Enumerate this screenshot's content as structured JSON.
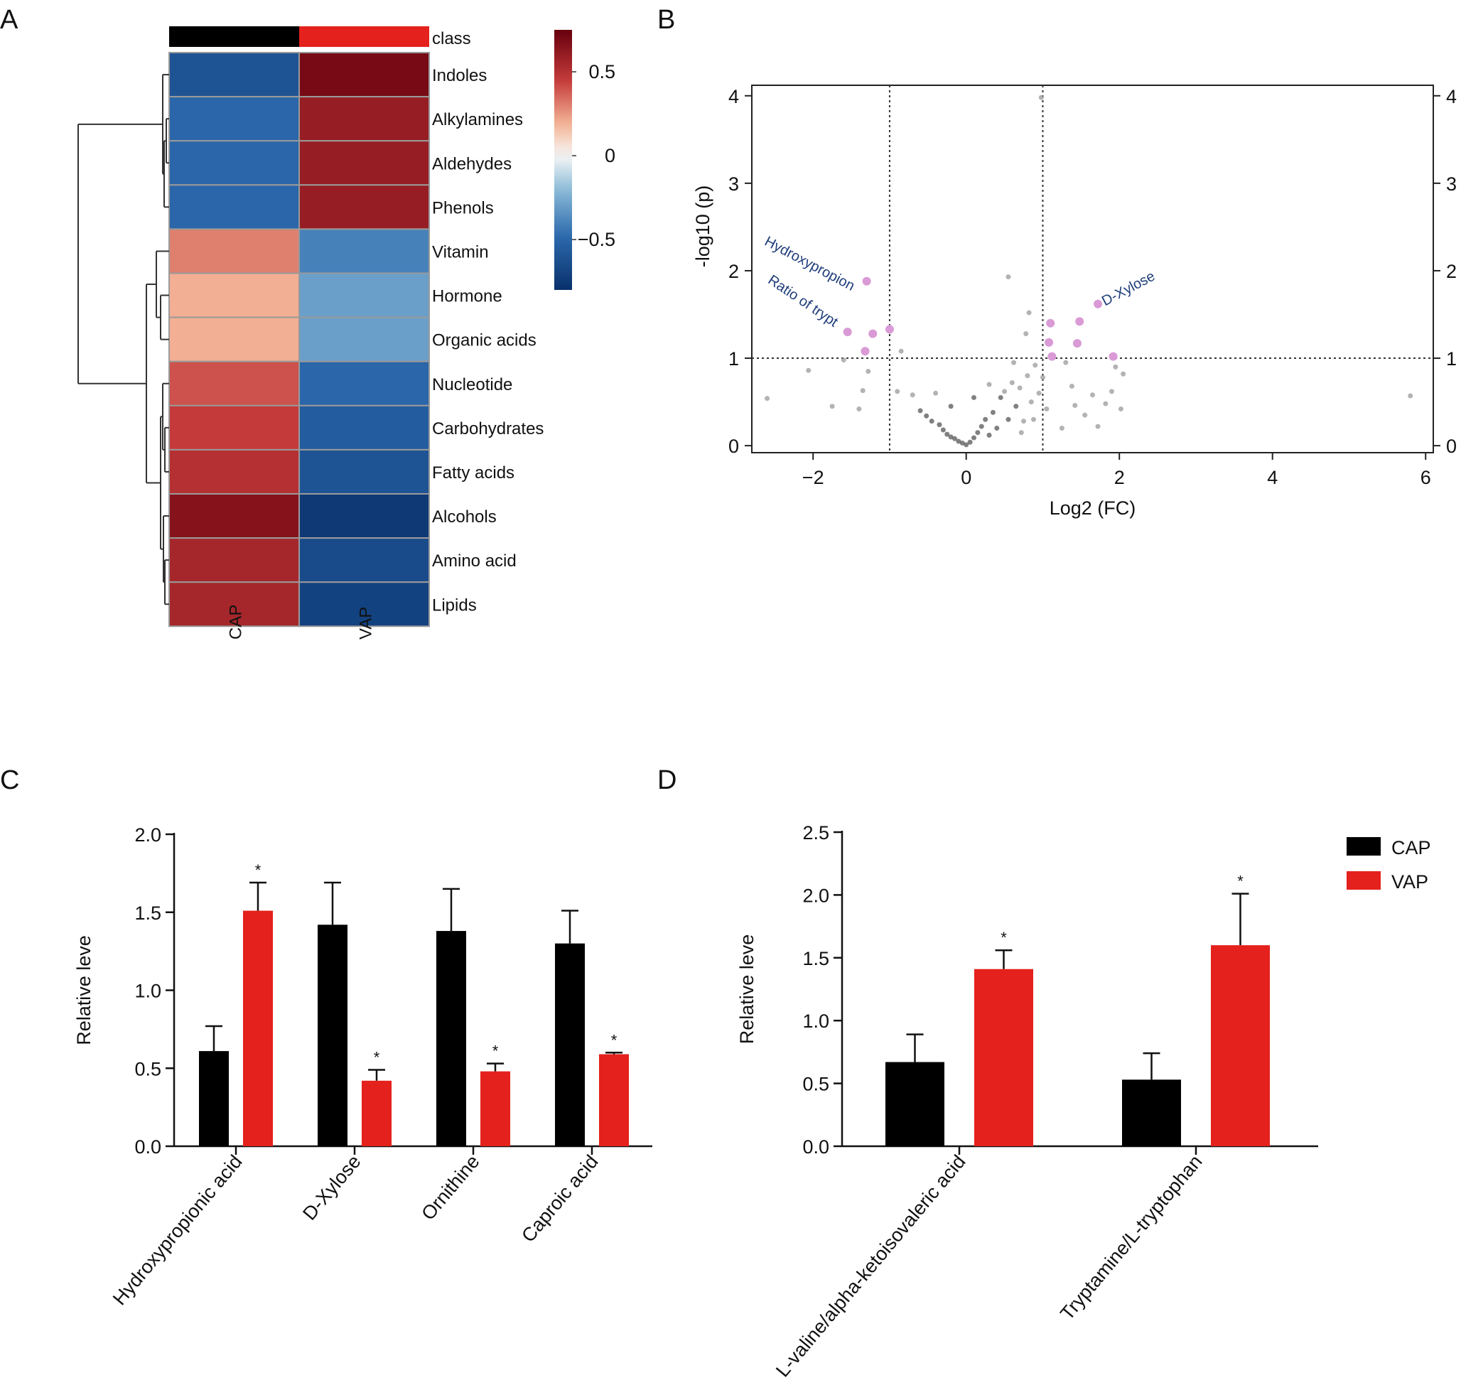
{
  "panels": {
    "a": "A",
    "b": "B",
    "c": "C",
    "d": "D"
  },
  "colors": {
    "cap": "#000000",
    "vap": "#e4211c",
    "high": "#67000d",
    "mid": "#f7f7f7",
    "low": "#08306b"
  },
  "chart_data": [
    {
      "type": "heatmap",
      "panel": "A",
      "columns": [
        "CAP",
        "VAP"
      ],
      "annotation_label": "class",
      "rows": [
        "Indoles",
        "Alkylamines",
        "Aldehydes",
        "Phenols",
        "Vitamin",
        "Hormone",
        "Organic acids",
        "Nucleotide",
        "Carbohydrates",
        "Fatty acids",
        "Alcohols",
        "Amino acid",
        "Lipids"
      ],
      "values": [
        [
          -0.6,
          0.7
        ],
        [
          -0.5,
          0.6
        ],
        [
          -0.5,
          0.6
        ],
        [
          -0.5,
          0.6
        ],
        [
          0.3,
          -0.4
        ],
        [
          0.2,
          -0.3
        ],
        [
          0.2,
          -0.3
        ],
        [
          0.4,
          -0.5
        ],
        [
          0.45,
          -0.55
        ],
        [
          0.5,
          -0.6
        ],
        [
          0.65,
          -0.75
        ],
        [
          0.55,
          -0.65
        ],
        [
          0.55,
          -0.7
        ]
      ],
      "colorbar": {
        "ticks": [
          "0.5",
          "0",
          "−0.5"
        ],
        "tick_values": [
          0.5,
          0,
          -0.5
        ],
        "range": [
          -0.8,
          0.75
        ]
      },
      "dendrogram": true
    },
    {
      "type": "scatter",
      "panel": "B",
      "xlabel": "Log2 (FC)",
      "ylabel": "-log10 (p)",
      "xlim": [
        -2.8,
        6.1
      ],
      "ylim": [
        -0.08,
        4.12
      ],
      "xticks": [
        "−2",
        "0",
        "2",
        "4",
        "6"
      ],
      "xtick_values": [
        -2,
        0,
        2,
        4,
        6
      ],
      "yticks": [
        "0",
        "1",
        "2",
        "3",
        "4"
      ],
      "ytick_values": [
        0,
        1,
        2,
        3,
        4
      ],
      "thresholds": {
        "x": [
          -1,
          1
        ],
        "y": 1
      },
      "annotations": [
        {
          "text": "Hydroxypropion",
          "x": -1.3,
          "y": 1.88
        },
        {
          "text": "Ratio of trypt",
          "x": -1.58,
          "y": 1.3
        },
        {
          "text": "D-Xylose",
          "x": 1.72,
          "y": 1.62
        }
      ],
      "significant_points": [
        [
          -1.3,
          1.88
        ],
        [
          -1.55,
          1.3
        ],
        [
          -1.22,
          1.28
        ],
        [
          -1.0,
          1.33
        ],
        [
          -1.32,
          1.08
        ],
        [
          1.1,
          1.4
        ],
        [
          1.08,
          1.18
        ],
        [
          1.12,
          1.02
        ],
        [
          1.45,
          1.17
        ],
        [
          1.48,
          1.42
        ],
        [
          1.72,
          1.62
        ],
        [
          1.92,
          1.02
        ]
      ],
      "points": [
        [
          -2.6,
          0.54
        ],
        [
          -2.06,
          0.86
        ],
        [
          -1.75,
          0.45
        ],
        [
          -1.6,
          0.98
        ],
        [
          -1.4,
          0.42
        ],
        [
          -1.35,
          0.63
        ],
        [
          -1.28,
          0.85
        ],
        [
          -0.85,
          1.08
        ],
        [
          -0.9,
          0.62
        ],
        [
          -0.7,
          0.58
        ],
        [
          -0.6,
          0.4
        ],
        [
          -0.52,
          0.34
        ],
        [
          -0.45,
          0.28
        ],
        [
          -0.35,
          0.24
        ],
        [
          -0.3,
          0.18
        ],
        [
          -0.25,
          0.13
        ],
        [
          -0.2,
          0.1
        ],
        [
          -0.15,
          0.08
        ],
        [
          -0.1,
          0.05
        ],
        [
          -0.05,
          0.03
        ],
        [
          0.0,
          0.01
        ],
        [
          0.05,
          0.04
        ],
        [
          0.1,
          0.09
        ],
        [
          0.15,
          0.15
        ],
        [
          0.2,
          0.22
        ],
        [
          0.25,
          0.3
        ],
        [
          0.3,
          0.12
        ],
        [
          0.35,
          0.38
        ],
        [
          0.4,
          0.2
        ],
        [
          0.45,
          0.55
        ],
        [
          0.5,
          0.62
        ],
        [
          0.55,
          0.3
        ],
        [
          0.6,
          0.72
        ],
        [
          0.65,
          0.45
        ],
        [
          0.7,
          0.66
        ],
        [
          0.75,
          0.28
        ],
        [
          0.8,
          0.8
        ],
        [
          0.85,
          0.5
        ],
        [
          0.9,
          0.92
        ],
        [
          0.95,
          0.6
        ],
        [
          1.0,
          0.78
        ],
        [
          1.05,
          0.42
        ],
        [
          0.55,
          1.93
        ],
        [
          0.78,
          1.28
        ],
        [
          0.82,
          1.52
        ],
        [
          0.98,
          3.98
        ],
        [
          1.3,
          0.95
        ],
        [
          1.38,
          0.68
        ],
        [
          1.42,
          0.46
        ],
        [
          1.55,
          0.35
        ],
        [
          1.65,
          0.58
        ],
        [
          1.72,
          0.22
        ],
        [
          1.82,
          0.48
        ],
        [
          1.9,
          0.62
        ],
        [
          1.95,
          0.9
        ],
        [
          2.02,
          0.42
        ],
        [
          2.05,
          0.82
        ],
        [
          5.8,
          0.57
        ],
        [
          -0.4,
          0.6
        ],
        [
          -0.2,
          0.45
        ],
        [
          0.1,
          0.55
        ],
        [
          0.3,
          0.7
        ],
        [
          0.62,
          0.95
        ],
        [
          0.72,
          0.15
        ],
        [
          0.88,
          0.3
        ],
        [
          1.25,
          0.2
        ]
      ]
    },
    {
      "type": "bar",
      "panel": "C",
      "ylabel": "Relative leve",
      "ylim": [
        0,
        2.0
      ],
      "yticks": [
        "0.0",
        "0.5",
        "1.0",
        "1.5",
        "2.0"
      ],
      "ytick_values": [
        0,
        0.5,
        1.0,
        1.5,
        2.0
      ],
      "categories": [
        "Hydroxypropionic acid",
        "D-Xylose",
        "Ornithine",
        "Caproic acid"
      ],
      "series": [
        {
          "values": [
            0.61,
            1.42,
            1.38,
            1.3
          ],
          "errors": [
            0.16,
            0.27,
            0.27,
            0.21
          ]
        },
        {
          "values": [
            1.51,
            0.42,
            0.48,
            0.59
          ],
          "errors": [
            0.18,
            0.07,
            0.05,
            0.01
          ],
          "markers": [
            "*",
            "*",
            "*",
            "*"
          ]
        }
      ]
    },
    {
      "type": "bar",
      "panel": "D",
      "ylabel": "Relative leve",
      "ylim": [
        0,
        2.5
      ],
      "yticks": [
        "0.0",
        "0.5",
        "1.0",
        "1.5",
        "2.0",
        "2.5"
      ],
      "ytick_values": [
        0,
        0.5,
        1.0,
        1.5,
        2.0,
        2.5
      ],
      "categories": [
        "L-valine/alpha-ketoisovaleric acid",
        "Tryptamine/L-tryptophan"
      ],
      "legend": {
        "position": "top-right",
        "entries": [
          "CAP",
          "VAP"
        ]
      },
      "series": [
        {
          "name": "CAP",
          "values": [
            0.67,
            0.53
          ],
          "errors": [
            0.22,
            0.21
          ]
        },
        {
          "name": "VAP",
          "values": [
            1.41,
            1.6
          ],
          "errors": [
            0.15,
            0.41
          ],
          "markers": [
            "*",
            "*"
          ]
        }
      ]
    }
  ]
}
